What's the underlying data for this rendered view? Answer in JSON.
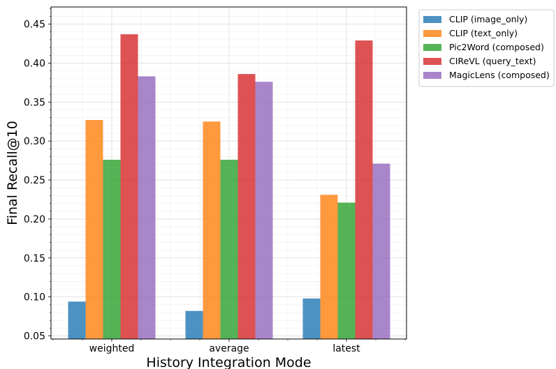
{
  "chart_data": {
    "type": "bar",
    "title": "",
    "xlabel": "History Integration Mode",
    "ylabel": "Final Recall@10",
    "categories": [
      "weighted",
      "average",
      "latest"
    ],
    "series": [
      {
        "name": "CLIP (image_only)",
        "color": "#1f77b4",
        "values": [
          0.094,
          0.082,
          0.098
        ]
      },
      {
        "name": "CLIP (text_only)",
        "color": "#ff7f0e",
        "values": [
          0.327,
          0.325,
          0.231
        ]
      },
      {
        "name": "Pic2Word (composed)",
        "color": "#2ca02c",
        "values": [
          0.276,
          0.276,
          0.221
        ]
      },
      {
        "name": "CIReVL (query_text)",
        "color": "#d62728",
        "values": [
          0.437,
          0.386,
          0.429
        ]
      },
      {
        "name": "MagicLens (composed)",
        "color": "#9467bd",
        "values": [
          0.383,
          0.376,
          0.271
        ]
      }
    ],
    "ylim": [
      0.046,
      0.472
    ],
    "yticks": [
      "0.05",
      "0.10",
      "0.15",
      "0.20",
      "0.25",
      "0.30",
      "0.35",
      "0.40",
      "0.45"
    ],
    "grid": true,
    "legend_position": "outside-top-right"
  }
}
